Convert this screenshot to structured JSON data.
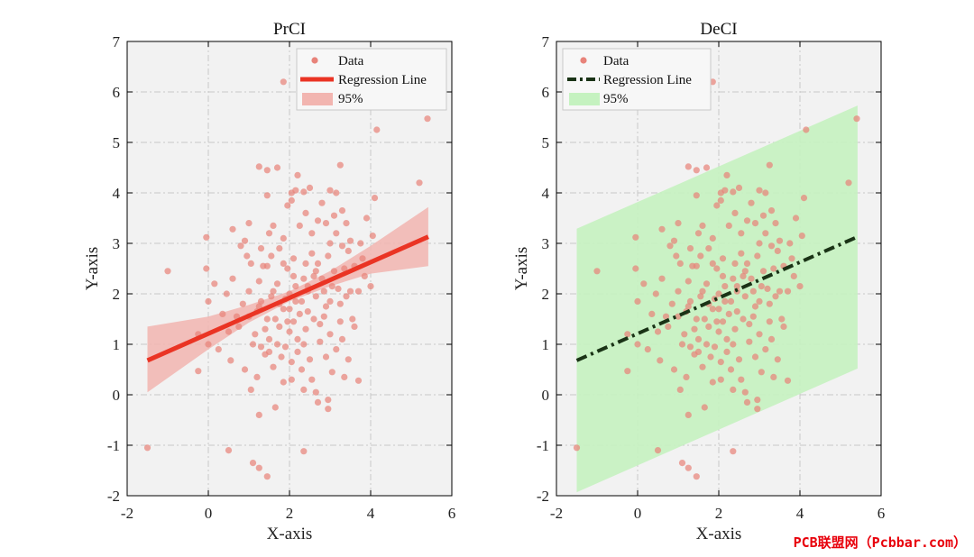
{
  "chart_data": [
    {
      "type": "scatter",
      "title": "PrCI",
      "xlabel": "X-axis",
      "ylabel": "Y-axis",
      "xlim": [
        -2,
        6
      ],
      "ylim": [
        -2,
        7
      ],
      "xticks": [
        "-2",
        "0",
        "2",
        "4",
        "6"
      ],
      "yticks": [
        "-2",
        "-1",
        "0",
        "1",
        "2",
        "3",
        "4",
        "5",
        "6",
        "7"
      ],
      "grid": true,
      "legend_position": "top-right",
      "legend": [
        "Data",
        "Regression Line",
        "95%"
      ],
      "colors": {
        "points": "#e8837a",
        "line": "#ea3424",
        "band": "#f2b5b0"
      },
      "regression": {
        "x": [
          -1.5,
          5.42
        ],
        "y": [
          0.68,
          3.13
        ]
      },
      "band": {
        "x": [
          -1.5,
          0,
          1,
          2,
          3,
          4,
          5.42
        ],
        "lower": [
          0.05,
          0.9,
          1.43,
          1.85,
          2.15,
          2.4,
          2.55
        ],
        "upper": [
          1.35,
          1.55,
          1.78,
          2.05,
          2.45,
          2.95,
          3.72
        ]
      }
    },
    {
      "type": "scatter",
      "title": "DeCI",
      "xlabel": "X-axis",
      "ylabel": "Y-axis",
      "xlim": [
        -2,
        6
      ],
      "ylim": [
        -2,
        7
      ],
      "xticks": [
        "-2",
        "0",
        "2",
        "4",
        "6"
      ],
      "yticks": [
        "-2",
        "-1",
        "0",
        "1",
        "2",
        "3",
        "4",
        "5",
        "6",
        "7"
      ],
      "grid": true,
      "legend_position": "top-left",
      "legend": [
        "Data",
        "Regression Line",
        "95%"
      ],
      "colors": {
        "points": "#e8837a",
        "line": "#1a3316",
        "band": "#c5f2c0"
      },
      "regression": {
        "x": [
          -1.5,
          5.42
        ],
        "y": [
          0.68,
          3.13
        ]
      },
      "band": {
        "x": [
          -1.5,
          5.42
        ],
        "lower": [
          -1.93,
          0.52
        ],
        "upper": [
          3.29,
          5.73
        ]
      }
    }
  ],
  "scatter_points": [
    [
      1.85,
      6.2
    ],
    [
      5.4,
      5.47
    ],
    [
      4.15,
      5.25
    ],
    [
      5.2,
      4.2
    ],
    [
      -1.0,
      2.45
    ],
    [
      -0.05,
      3.12
    ],
    [
      -0.05,
      2.5
    ],
    [
      0.15,
      2.2
    ],
    [
      0.0,
      1.85
    ],
    [
      -0.25,
      1.2
    ],
    [
      -0.25,
      0.47
    ],
    [
      0.6,
      3.28
    ],
    [
      0.9,
      3.05
    ],
    [
      1.0,
      3.4
    ],
    [
      1.25,
      4.52
    ],
    [
      1.45,
      4.45
    ],
    [
      1.7,
      4.5
    ],
    [
      2.2,
      4.35
    ],
    [
      2.15,
      4.05
    ],
    [
      2.35,
      4.02
    ],
    [
      3.0,
      4.05
    ],
    [
      3.25,
      4.55
    ],
    [
      3.15,
      4.0
    ],
    [
      4.1,
      3.9
    ],
    [
      1.45,
      3.95
    ],
    [
      2.8,
      3.8
    ],
    [
      3.3,
      3.65
    ],
    [
      3.4,
      3.4
    ],
    [
      3.9,
      3.5
    ],
    [
      4.05,
      3.15
    ],
    [
      2.4,
      3.6
    ],
    [
      2.7,
      3.45
    ],
    [
      1.85,
      3.1
    ],
    [
      1.6,
      3.35
    ],
    [
      2.05,
      3.85
    ],
    [
      3.15,
      3.2
    ],
    [
      1.3,
      2.9
    ],
    [
      1.05,
      2.6
    ],
    [
      0.6,
      2.3
    ],
    [
      0.45,
      2.0
    ],
    [
      1.45,
      2.55
    ],
    [
      2.1,
      2.7
    ],
    [
      1.75,
      2.9
    ],
    [
      2.55,
      2.8
    ],
    [
      2.95,
      2.75
    ],
    [
      3.35,
      2.5
    ],
    [
      3.6,
      2.55
    ],
    [
      3.85,
      2.35
    ],
    [
      4.0,
      2.15
    ],
    [
      3.7,
      2.05
    ],
    [
      2.35,
      2.3
    ],
    [
      1.95,
      2.5
    ],
    [
      1.25,
      2.25
    ],
    [
      1.0,
      2.05
    ],
    [
      0.85,
      1.8
    ],
    [
      1.55,
      1.95
    ],
    [
      1.85,
      1.7
    ],
    [
      2.15,
      1.85
    ],
    [
      2.45,
      2.05
    ],
    [
      2.65,
      1.95
    ],
    [
      2.9,
      1.75
    ],
    [
      3.25,
      1.8
    ],
    [
      3.5,
      2.05
    ],
    [
      3.05,
      2.15
    ],
    [
      2.1,
      1.45
    ],
    [
      1.75,
      1.35
    ],
    [
      1.45,
      1.5
    ],
    [
      1.15,
      1.2
    ],
    [
      0.75,
      1.35
    ],
    [
      0.5,
      1.25
    ],
    [
      1.3,
      0.95
    ],
    [
      1.5,
      0.85
    ],
    [
      1.9,
      0.95
    ],
    [
      2.2,
      1.1
    ],
    [
      2.4,
      1.3
    ],
    [
      2.75,
      1.4
    ],
    [
      3.0,
      1.2
    ],
    [
      3.3,
      1.1
    ],
    [
      3.6,
      1.35
    ],
    [
      2.05,
      0.65
    ],
    [
      2.3,
      0.5
    ],
    [
      2.5,
      0.7
    ],
    [
      2.9,
      0.75
    ],
    [
      1.6,
      0.55
    ],
    [
      1.2,
      0.35
    ],
    [
      1.85,
      0.25
    ],
    [
      2.05,
      0.3
    ],
    [
      2.35,
      0.1
    ],
    [
      2.65,
      0.05
    ],
    [
      2.95,
      -0.1
    ],
    [
      3.35,
      0.35
    ],
    [
      3.7,
      0.28
    ],
    [
      1.05,
      0.1
    ],
    [
      1.65,
      -0.25
    ],
    [
      2.7,
      -0.15
    ],
    [
      1.25,
      -0.4
    ],
    [
      0.55,
      0.68
    ],
    [
      0.0,
      1.0
    ],
    [
      2.95,
      -0.28
    ],
    [
      3.05,
      0.45
    ],
    [
      1.1,
      -1.35
    ],
    [
      1.25,
      -1.45
    ],
    [
      1.45,
      -1.62
    ],
    [
      0.5,
      -1.1
    ],
    [
      2.35,
      -1.12
    ],
    [
      -1.5,
      -1.05
    ],
    [
      0.35,
      1.6
    ],
    [
      0.7,
      1.55
    ],
    [
      1.2,
      1.65
    ],
    [
      1.7,
      2.2
    ],
    [
      2.0,
      2.0
    ],
    [
      2.6,
      2.35
    ],
    [
      2.8,
      2.3
    ],
    [
      3.1,
      2.45
    ],
    [
      2.25,
      1.6
    ],
    [
      1.3,
      1.85
    ],
    [
      0.25,
      0.9
    ],
    [
      0.9,
      0.5
    ],
    [
      1.5,
      1.1
    ],
    [
      2.55,
      3.2
    ],
    [
      3.0,
      3.0
    ],
    [
      3.45,
      2.85
    ],
    [
      1.1,
      1.0
    ],
    [
      3.55,
      1.5
    ],
    [
      2.0,
      1.25
    ],
    [
      1.65,
      1.5
    ],
    [
      2.45,
      1.65
    ],
    [
      2.85,
      1.55
    ],
    [
      3.2,
      2.1
    ],
    [
      2.15,
      2.15
    ],
    [
      1.9,
      1.9
    ],
    [
      1.35,
      2.55
    ],
    [
      0.95,
      2.75
    ],
    [
      3.75,
      3.0
    ],
    [
      2.25,
      3.35
    ],
    [
      1.55,
      2.75
    ],
    [
      2.7,
      2.6
    ],
    [
      3.5,
      3.05
    ],
    [
      1.95,
      3.75
    ],
    [
      3.1,
      3.55
    ],
    [
      2.5,
      4.1
    ],
    [
      2.75,
      1.05
    ],
    [
      2.2,
      0.85
    ],
    [
      1.8,
      0.75
    ],
    [
      3.15,
      0.9
    ],
    [
      2.55,
      0.3
    ],
    [
      1.4,
      0.8
    ],
    [
      3.25,
      1.45
    ],
    [
      3.8,
      2.7
    ],
    [
      2.4,
      2.6
    ],
    [
      2.1,
      2.35
    ],
    [
      1.6,
      2.05
    ],
    [
      2.85,
      2.05
    ],
    [
      3.4,
      1.95
    ],
    [
      1.95,
      1.45
    ],
    [
      2.6,
      1.5
    ],
    [
      2.3,
      1.85
    ],
    [
      2.0,
      1.7
    ],
    [
      1.75,
      1.8
    ],
    [
      1.4,
      1.3
    ],
    [
      2.35,
      1.0
    ],
    [
      3.45,
      0.7
    ],
    [
      1.0,
      1.55
    ],
    [
      3.0,
      1.85
    ],
    [
      1.85,
      2.6
    ],
    [
      2.65,
      2.45
    ],
    [
      1.5,
      3.2
    ],
    [
      3.3,
      2.95
    ],
    [
      2.05,
      4.0
    ],
    [
      0.8,
      2.95
    ],
    [
      2.9,
      3.4
    ],
    [
      1.25,
      1.75
    ],
    [
      2.45,
      2.15
    ],
    [
      1.7,
      1.0
    ]
  ],
  "watermark": "PCB联盟网（Pcbbar.com）"
}
